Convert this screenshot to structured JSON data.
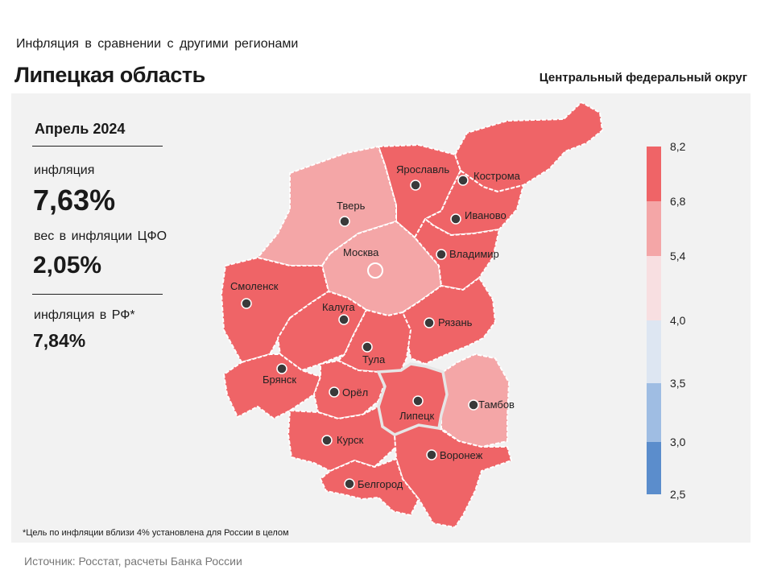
{
  "header": {
    "subtitle": "Инфляция в сравнении с другими регионами",
    "title": "Липецкая область",
    "district": "Центральный федеральный округ"
  },
  "stats": {
    "period": "Апрель 2024",
    "inflation_label": "инфляция",
    "inflation_value": "7,63%",
    "weight_label": "вес в инфляции ЦФО",
    "weight_value": "2,05%",
    "rf_label": "инфляция в РФ*",
    "rf_value": "7,84%"
  },
  "footnote": "*Цель по инфляции вблизи 4% установлена для России в целом",
  "source": "Источник: Росстат, расчеты Банка России",
  "legend": {
    "ticks": [
      "8,2",
      "6,8",
      "5,4",
      "4,0",
      "3,5",
      "3,0",
      "2,5"
    ],
    "colors": [
      "#ef6467",
      "#f4a6a7",
      "#f8dfe1",
      "#dde6f2",
      "#9fbde3",
      "#5b8dcc"
    ]
  },
  "colors": {
    "dark_red": "#ef6467",
    "light_red": "#f4a6a7",
    "city_dot": "#3a3a3a"
  },
  "regions": [
    {
      "id": "yaroslavl",
      "city": "Ярославль",
      "color": "#ef6467"
    },
    {
      "id": "kostroma",
      "city": "Кострома",
      "color": "#ef6467"
    },
    {
      "id": "tver",
      "city": "Тверь",
      "color": "#f4a6a7"
    },
    {
      "id": "ivanovo",
      "city": "Иваново",
      "color": "#ef6467"
    },
    {
      "id": "moscow",
      "city": "Москва",
      "color": "#f4a6a7"
    },
    {
      "id": "vladimir",
      "city": "Владимир",
      "color": "#ef6467"
    },
    {
      "id": "smolensk",
      "city": "Смоленск",
      "color": "#ef6467"
    },
    {
      "id": "kaluga",
      "city": "Калуга",
      "color": "#ef6467"
    },
    {
      "id": "ryazan",
      "city": "Рязань",
      "color": "#ef6467"
    },
    {
      "id": "tula",
      "city": "Тула",
      "color": "#ef6467"
    },
    {
      "id": "bryansk",
      "city": "Брянск",
      "color": "#ef6467"
    },
    {
      "id": "orel",
      "city": "Орёл",
      "color": "#ef6467"
    },
    {
      "id": "lipetsk",
      "city": "Липецк",
      "color": "#ef6467"
    },
    {
      "id": "tambov",
      "city": "Тамбов",
      "color": "#f4a6a7"
    },
    {
      "id": "kursk",
      "city": "Курск",
      "color": "#ef6467"
    },
    {
      "id": "voronezh",
      "city": "Воронеж",
      "color": "#ef6467"
    },
    {
      "id": "belgorod",
      "city": "Белгород",
      "color": "#ef6467"
    }
  ]
}
